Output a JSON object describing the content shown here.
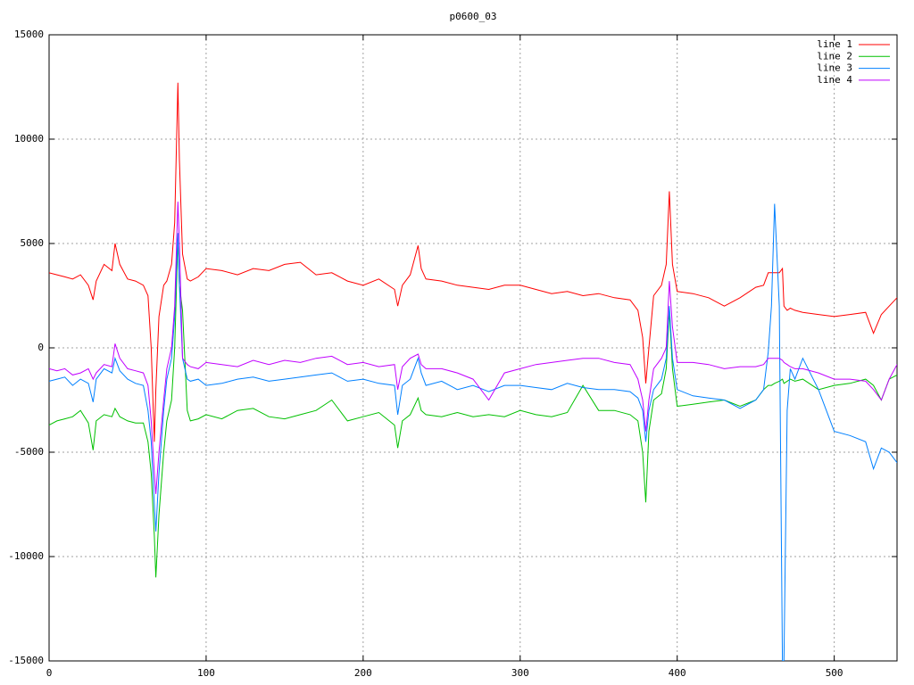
{
  "chart_data": {
    "type": "line",
    "title": "p0600_03",
    "x": [
      0,
      5,
      10,
      15,
      20,
      25,
      28,
      30,
      35,
      40,
      42,
      45,
      50,
      55,
      60,
      63,
      65,
      67,
      68,
      70,
      73,
      75,
      78,
      80,
      82,
      83,
      85,
      88,
      90,
      95,
      100,
      110,
      120,
      130,
      140,
      150,
      160,
      170,
      180,
      190,
      200,
      210,
      220,
      222,
      225,
      230,
      235,
      237,
      240,
      250,
      260,
      270,
      280,
      290,
      300,
      310,
      320,
      330,
      340,
      350,
      360,
      370,
      375,
      378,
      380,
      382,
      385,
      390,
      393,
      395,
      397,
      400,
      410,
      420,
      430,
      440,
      450,
      455,
      458,
      460,
      462,
      465,
      467,
      468,
      470,
      472,
      475,
      480,
      490,
      500,
      510,
      520,
      525,
      530,
      535,
      540
    ],
    "series": [
      {
        "name": "line 1",
        "color": "#ff0000",
        "values": [
          3600,
          3500,
          3400,
          3300,
          3500,
          3000,
          2300,
          3200,
          4000,
          3700,
          5000,
          4000,
          3300,
          3200,
          3000,
          2500,
          0,
          -4500,
          -2000,
          1500,
          3000,
          3200,
          4000,
          6000,
          12700,
          9000,
          4500,
          3300,
          3200,
          3400,
          3800,
          3700,
          3500,
          3800,
          3700,
          4000,
          4100,
          3500,
          3600,
          3200,
          3000,
          3300,
          2800,
          2000,
          3000,
          3500,
          4900,
          3800,
          3300,
          3200,
          3000,
          2900,
          2800,
          3000,
          3000,
          2800,
          2600,
          2700,
          2500,
          2600,
          2400,
          2300,
          1800,
          500,
          -1700,
          0,
          2500,
          3000,
          4000,
          7500,
          4000,
          2700,
          2600,
          2400,
          2000,
          2400,
          2900,
          3000,
          3600,
          3600,
          3600,
          3600,
          3800,
          2000,
          1800,
          1900,
          1800,
          1700,
          1600,
          1500,
          1600,
          1700,
          700,
          1600,
          2000,
          2400
        ]
      },
      {
        "name": "line 2",
        "color": "#00c000",
        "values": [
          -3700,
          -3500,
          -3400,
          -3300,
          -3000,
          -3600,
          -4900,
          -3500,
          -3200,
          -3300,
          -2900,
          -3300,
          -3500,
          -3600,
          -3600,
          -4500,
          -6000,
          -9000,
          -11000,
          -8000,
          -5000,
          -3500,
          -2500,
          0,
          5200,
          3000,
          1800,
          -3000,
          -3500,
          -3400,
          -3200,
          -3400,
          -3000,
          -2900,
          -3300,
          -3400,
          -3200,
          -3000,
          -2500,
          -3500,
          -3300,
          -3100,
          -3700,
          -4800,
          -3500,
          -3200,
          -2400,
          -3000,
          -3200,
          -3300,
          -3100,
          -3300,
          -3200,
          -3300,
          -3000,
          -3200,
          -3300,
          -3100,
          -1800,
          -3000,
          -3000,
          -3200,
          -3500,
          -5000,
          -7400,
          -4000,
          -2500,
          -2200,
          -1000,
          1800,
          -1000,
          -2800,
          -2700,
          -2600,
          -2500,
          -2800,
          -2500,
          -2000,
          -1800,
          -1800,
          -1700,
          -1600,
          -1500,
          -1700,
          -1600,
          -1500,
          -1600,
          -1500,
          -2000,
          -1800,
          -1700,
          -1500,
          -1800,
          -2500,
          -1500,
          -1300
        ]
      },
      {
        "name": "line 3",
        "color": "#0080ff",
        "values": [
          -1600,
          -1500,
          -1400,
          -1800,
          -1500,
          -1700,
          -2600,
          -1500,
          -1000,
          -1200,
          -500,
          -1100,
          -1500,
          -1700,
          -1800,
          -3000,
          -4500,
          -7500,
          -8800,
          -6000,
          -3000,
          -1500,
          -500,
          1500,
          5500,
          3000,
          -500,
          -1500,
          -1600,
          -1500,
          -1800,
          -1700,
          -1500,
          -1400,
          -1600,
          -1500,
          -1400,
          -1300,
          -1200,
          -1600,
          -1500,
          -1700,
          -1800,
          -3200,
          -1800,
          -1500,
          -500,
          -1200,
          -1800,
          -1600,
          -2000,
          -1800,
          -2100,
          -1800,
          -1800,
          -1900,
          -2000,
          -1700,
          -1900,
          -2000,
          -2000,
          -2100,
          -2400,
          -3000,
          -4500,
          -3000,
          -2000,
          -1500,
          -500,
          2000,
          -500,
          -2000,
          -2300,
          -2400,
          -2500,
          -2900,
          -2500,
          -2000,
          -200,
          2000,
          6900,
          2000,
          -15000,
          -15000,
          -3000,
          -1000,
          -1500,
          -500,
          -2000,
          -4000,
          -4200,
          -4500,
          -5800,
          -4800,
          -5000,
          -5500
        ]
      },
      {
        "name": "line 4",
        "color": "#c000ff",
        "values": [
          -1000,
          -1100,
          -1000,
          -1300,
          -1200,
          -1000,
          -1500,
          -1200,
          -800,
          -900,
          200,
          -500,
          -1000,
          -1100,
          -1200,
          -1800,
          -3500,
          -6000,
          -7000,
          -5000,
          -2500,
          -1000,
          0,
          2000,
          7000,
          5000,
          -500,
          -800,
          -900,
          -1000,
          -700,
          -800,
          -900,
          -600,
          -800,
          -600,
          -700,
          -500,
          -400,
          -800,
          -700,
          -900,
          -800,
          -2000,
          -900,
          -500,
          -300,
          -800,
          -1000,
          -1000,
          -1200,
          -1500,
          -2500,
          -1200,
          -1000,
          -800,
          -700,
          -600,
          -500,
          -500,
          -700,
          -800,
          -1500,
          -2500,
          -4000,
          -2500,
          -1000,
          -500,
          0,
          3200,
          1000,
          -700,
          -700,
          -800,
          -1000,
          -900,
          -900,
          -800,
          -500,
          -500,
          -500,
          -500,
          -600,
          -700,
          -800,
          -900,
          -1000,
          -1000,
          -1200,
          -1500,
          -1500,
          -1600,
          -2000,
          -2500,
          -1500,
          -800
        ]
      }
    ],
    "xlim": [
      0,
      540
    ],
    "xticks": [
      0,
      100,
      200,
      300,
      400,
      500
    ],
    "ylim": [
      -15000,
      15000
    ],
    "yticks": [
      -15000,
      -10000,
      -5000,
      0,
      5000,
      10000,
      15000
    ],
    "grid": true,
    "legend": "upper right"
  }
}
